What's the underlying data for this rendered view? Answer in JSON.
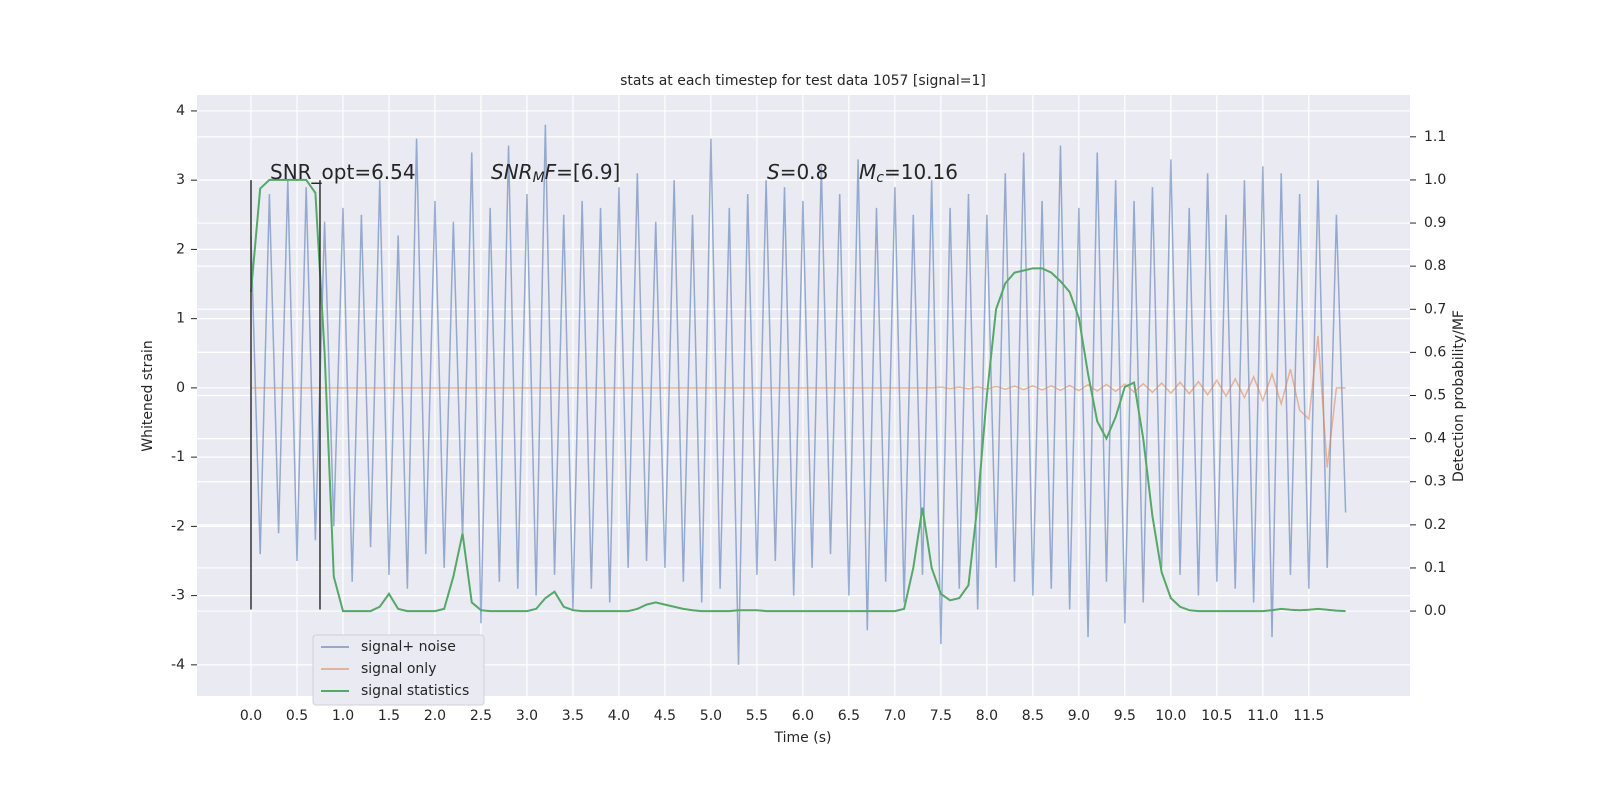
{
  "chart_data": {
    "type": "line",
    "title": "stats at each timestep for test data 1057 [signal=1]",
    "xlabel": "Time (s)",
    "ylabel": "Whitened strain",
    "y2label": "Detection probability/MF",
    "grid": true,
    "legend": "lower left",
    "xlim": [
      -0.587,
      12.6
    ],
    "ylim": [
      -4.45,
      4.23
    ],
    "y2lim": [
      -0.197,
      1.197
    ],
    "xticks": [
      {
        "value": 0,
        "label": "0.0"
      },
      0.5,
      {
        "value": 1,
        "label": "1.0"
      },
      1.5,
      {
        "value": 2,
        "label": "2.0"
      },
      2.5,
      {
        "value": 3,
        "label": "3.0"
      },
      3.5,
      {
        "value": 4,
        "label": "4.0"
      },
      4.5,
      {
        "value": 5,
        "label": "5.0"
      },
      5.5,
      {
        "value": 6,
        "label": "6.0"
      },
      6.5,
      {
        "value": 7,
        "label": "7.0"
      },
      7.5,
      {
        "value": 8,
        "label": "8.0"
      },
      8.5,
      {
        "value": 9,
        "label": "9.0"
      },
      9.5,
      {
        "value": 10,
        "label": "10.0"
      },
      10.5,
      {
        "value": 11,
        "label": "11.0"
      },
      11.5
    ],
    "yticks": [
      -4,
      -3,
      -2,
      -1,
      0,
      1,
      2,
      3,
      4
    ],
    "y2ticks": [
      {
        "value": 0,
        "label": "0.0"
      },
      0.1,
      0.2,
      0.3,
      0.4,
      0.5,
      0.6,
      0.7,
      0.8,
      0.9,
      {
        "value": 1,
        "label": "1.0"
      },
      1.1
    ],
    "vlines": [
      0,
      0.75
    ],
    "vline_range": [
      -3.2,
      3
    ],
    "annotations": [
      [
        {
          "text": "SNR_opt=6.54"
        }
      ],
      [
        {
          "text": "SNR",
          "italic": true
        },
        {
          "text": "M",
          "italic": true,
          "sub": true
        },
        {
          "text": "F",
          "italic": true
        },
        {
          "text": "=[6.9]"
        }
      ],
      [
        {
          "text": "S",
          "italic": true
        },
        {
          "text": "=0.8"
        }
      ],
      [
        {
          "text": "M",
          "italic": true
        },
        {
          "text": "c",
          "italic": true,
          "sub": true
        },
        {
          "text": "=10.16"
        }
      ]
    ],
    "x": [
      0,
      0.1,
      0.2,
      0.3,
      0.4,
      0.5,
      0.6,
      0.7,
      0.8,
      0.9,
      1,
      1.1,
      1.2,
      1.3,
      1.4,
      1.5,
      1.6,
      1.7,
      1.8,
      1.9,
      2,
      2.1,
      2.2,
      2.3,
      2.4,
      2.5,
      2.6,
      2.7,
      2.8,
      2.9,
      3,
      3.1,
      3.2,
      3.3,
      3.4,
      3.5,
      3.6,
      3.7,
      3.8,
      3.9,
      4,
      4.1,
      4.2,
      4.3,
      4.4,
      4.5,
      4.6,
      4.7,
      4.8,
      4.9,
      5,
      5.1,
      5.2,
      5.3,
      5.4,
      5.5,
      5.6,
      5.7,
      5.8,
      5.9,
      6,
      6.1,
      6.2,
      6.3,
      6.4,
      6.5,
      6.6,
      6.7,
      6.8,
      6.9,
      7,
      7.1,
      7.2,
      7.3,
      7.4,
      7.5,
      7.6,
      7.7,
      7.8,
      7.9,
      8,
      8.1,
      8.2,
      8.3,
      8.4,
      8.5,
      8.6,
      8.7,
      8.8,
      8.9,
      9,
      9.1,
      9.2,
      9.3,
      9.4,
      9.5,
      9.6,
      9.7,
      9.8,
      9.9,
      10,
      10.1,
      10.2,
      10.3,
      10.4,
      10.5,
      10.6,
      10.7,
      10.8,
      10.9,
      11,
      11.1,
      11.2,
      11.3,
      11.4,
      11.5,
      11.6,
      11.7,
      11.8,
      11.9
    ],
    "series": [
      {
        "name": "signal+ noise",
        "color": "#4c72b0",
        "axis": "y",
        "values": [
          2.2,
          -2.4,
          2.8,
          -2.1,
          3.0,
          -2.5,
          2.9,
          -2.2,
          2.4,
          -2.0,
          2.6,
          -2.8,
          2.5,
          -2.3,
          3.0,
          -2.7,
          2.2,
          -2.9,
          3.6,
          -2.4,
          2.7,
          -2.6,
          2.4,
          -2.2,
          3.4,
          -3.4,
          2.6,
          -2.8,
          3.5,
          -2.9,
          2.8,
          -3.0,
          3.8,
          -2.7,
          2.5,
          -3.2,
          2.7,
          -2.9,
          2.6,
          -3.1,
          2.9,
          -2.6,
          3.1,
          -2.5,
          2.4,
          -2.6,
          3.0,
          -2.8,
          2.5,
          -3.1,
          3.6,
          -2.9,
          2.6,
          -4.0,
          2.8,
          -2.7,
          3.0,
          -2.5,
          2.9,
          -3.0,
          2.7,
          -2.6,
          3.2,
          -2.4,
          2.8,
          -3.0,
          3.3,
          -3.5,
          2.6,
          -2.8,
          2.9,
          -3.1,
          2.5,
          -2.7,
          3.0,
          -3.7,
          2.6,
          -2.9,
          2.8,
          -3.2,
          2.5,
          -2.6,
          3.1,
          -2.8,
          3.4,
          -3.0,
          2.7,
          -2.9,
          3.5,
          -3.2,
          2.6,
          -3.6,
          3.4,
          -2.8,
          3.0,
          -3.4,
          2.7,
          -3.1,
          2.9,
          -2.6,
          3.3,
          -2.7,
          2.6,
          -3.0,
          3.1,
          -2.8,
          2.5,
          -2.9,
          3.0,
          -3.1,
          3.2,
          -3.6,
          3.1,
          -2.7,
          2.8,
          -2.9,
          3.0,
          -2.6,
          2.5,
          -1.8
        ]
      },
      {
        "name": "signal only",
        "color": "#dd8452",
        "axis": "y",
        "values": [
          0,
          0,
          0,
          0,
          0,
          0,
          0,
          0,
          0,
          0,
          0,
          0,
          0,
          0,
          0,
          0,
          0,
          0,
          0,
          0,
          0,
          0,
          0,
          0,
          0,
          0,
          0,
          0,
          0,
          0,
          0,
          0,
          0,
          0,
          0,
          0,
          0,
          0,
          0,
          0,
          0,
          0,
          0,
          0,
          0,
          0,
          0,
          0,
          0,
          0,
          0,
          0,
          0,
          0,
          0,
          0,
          0,
          0,
          0,
          0,
          0,
          0,
          0,
          0,
          0,
          0,
          0,
          0,
          0,
          0,
          0,
          0,
          0,
          0,
          0,
          0.01,
          -0.01,
          0.01,
          -0.015,
          0.015,
          -0.02,
          0.02,
          -0.02,
          0.025,
          -0.025,
          0.03,
          -0.03,
          0.03,
          -0.035,
          0.035,
          -0.04,
          0.045,
          -0.045,
          0.05,
          -0.05,
          0.055,
          -0.06,
          0.06,
          -0.065,
          0.07,
          -0.075,
          0.08,
          -0.085,
          0.09,
          -0.1,
          0.11,
          -0.12,
          0.13,
          -0.14,
          0.16,
          -0.18,
          0.2,
          -0.23,
          0.27,
          -0.32,
          -0.45,
          0.75,
          -1.15,
          0,
          0
        ]
      },
      {
        "name": "signal statistics",
        "color": "#55a868",
        "axis": "y2",
        "values": [
          0.74,
          0.98,
          1.0,
          1.0,
          1.0,
          1.0,
          1.0,
          0.97,
          0.6,
          0.08,
          0,
          0,
          0,
          0,
          0.01,
          0.04,
          0.005,
          0,
          0,
          0,
          0,
          0.005,
          0.08,
          0.18,
          0.02,
          0.002,
          0,
          0,
          0,
          0,
          0,
          0.005,
          0.03,
          0.045,
          0.01,
          0.002,
          0,
          0,
          0,
          0,
          0,
          0,
          0.005,
          0.015,
          0.02,
          0.015,
          0.01,
          0.005,
          0.002,
          0,
          0,
          0,
          0,
          0.002,
          0.002,
          0.002,
          0,
          0,
          0,
          0,
          0,
          0,
          0,
          0,
          0,
          0,
          0,
          0,
          0,
          0,
          0,
          0.005,
          0.1,
          0.24,
          0.1,
          0.04,
          0.025,
          0.03,
          0.06,
          0.25,
          0.5,
          0.7,
          0.76,
          0.785,
          0.79,
          0.795,
          0.795,
          0.785,
          0.765,
          0.74,
          0.68,
          0.55,
          0.44,
          0.4,
          0.45,
          0.52,
          0.53,
          0.4,
          0.22,
          0.09,
          0.03,
          0.01,
          0.002,
          0,
          0,
          0,
          0,
          0,
          0,
          0,
          0,
          0.002,
          0.005,
          0.003,
          0.002,
          0.003,
          0.005,
          0.003,
          0.001,
          0
        ]
      }
    ]
  }
}
